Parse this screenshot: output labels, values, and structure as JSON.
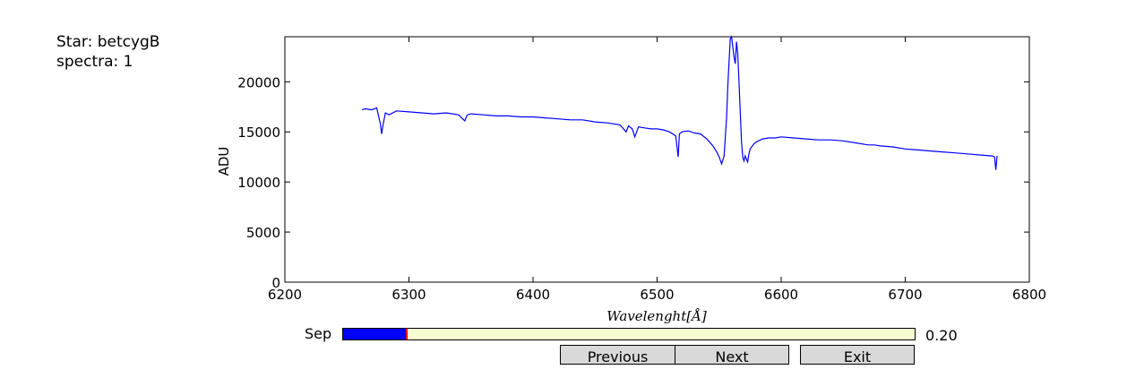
{
  "info": {
    "star": "Star: betcygB",
    "spectra": "spectra: 1"
  },
  "controls": {
    "slider_label": "Sep",
    "slider_value_text": "0.20",
    "slider_value": 0.2,
    "slider_min": 0,
    "slider_max": 1.8,
    "buttons": {
      "previous": "Previous",
      "next": "Next",
      "exit": "Exit"
    }
  },
  "colors": {
    "line": "#0000ff",
    "slider_fill": "#0000ff",
    "slider_track": "#fafad2",
    "slider_marker": "#ff0000",
    "button": "#d9d9d9"
  },
  "chart_data": {
    "type": "line",
    "title": "",
    "xlabel": "Wavelenght[Å]",
    "ylabel": "ADU",
    "xlim": [
      6200,
      6800
    ],
    "ylim": [
      0,
      24500
    ],
    "xticks": [
      6200,
      6300,
      6400,
      6500,
      6600,
      6700,
      6800
    ],
    "yticks": [
      0,
      5000,
      10000,
      15000,
      20000
    ],
    "grid": false,
    "series": [
      {
        "x": [
          6262,
          6265,
          6270,
          6274,
          6277,
          6278,
          6279,
          6281,
          6284,
          6290,
          6300,
          6310,
          6320,
          6330,
          6340,
          6345,
          6347,
          6350,
          6360,
          6370,
          6380,
          6390,
          6400,
          6410,
          6420,
          6430,
          6440,
          6450,
          6460,
          6470,
          6475,
          6477,
          6480,
          6482,
          6485,
          6490,
          6495,
          6500,
          6505,
          6510,
          6515,
          6517,
          6518,
          6520,
          6525,
          6530,
          6535,
          6540,
          6545,
          6548,
          6550,
          6552,
          6554,
          6556,
          6557,
          6558,
          6559,
          6560,
          6561,
          6562,
          6563,
          6564,
          6565,
          6566,
          6567,
          6568,
          6569,
          6570,
          6571,
          6572,
          6573,
          6574,
          6575,
          6578,
          6580,
          6585,
          6590,
          6595,
          6600,
          6610,
          6620,
          6630,
          6640,
          6650,
          6660,
          6670,
          6675,
          6680,
          6690,
          6700,
          6710,
          6720,
          6730,
          6740,
          6750,
          6760,
          6770,
          6772,
          6773,
          6774
        ],
        "y": [
          17200,
          17300,
          17200,
          17400,
          15800,
          14800,
          15600,
          16900,
          16700,
          17100,
          17000,
          16900,
          16800,
          16900,
          16700,
          16100,
          16700,
          16800,
          16700,
          16600,
          16600,
          16500,
          16500,
          16400,
          16300,
          16200,
          16200,
          16000,
          15900,
          15700,
          15000,
          15600,
          15300,
          14500,
          15500,
          15400,
          15300,
          15300,
          15200,
          15000,
          14600,
          12500,
          14800,
          15000,
          15100,
          14900,
          14800,
          14300,
          13600,
          13000,
          12500,
          11800,
          12600,
          16500,
          19500,
          22000,
          24300,
          24800,
          23500,
          22500,
          21800,
          24000,
          22800,
          20000,
          17000,
          14000,
          12500,
          12100,
          12600,
          12300,
          12000,
          12800,
          13300,
          13800,
          14000,
          14300,
          14400,
          14400,
          14500,
          14400,
          14300,
          14200,
          14200,
          14100,
          13900,
          13700,
          13700,
          13600,
          13500,
          13300,
          13200,
          13100,
          13000,
          12900,
          12800,
          12700,
          12600,
          12500,
          11200,
          12600
        ]
      }
    ]
  }
}
